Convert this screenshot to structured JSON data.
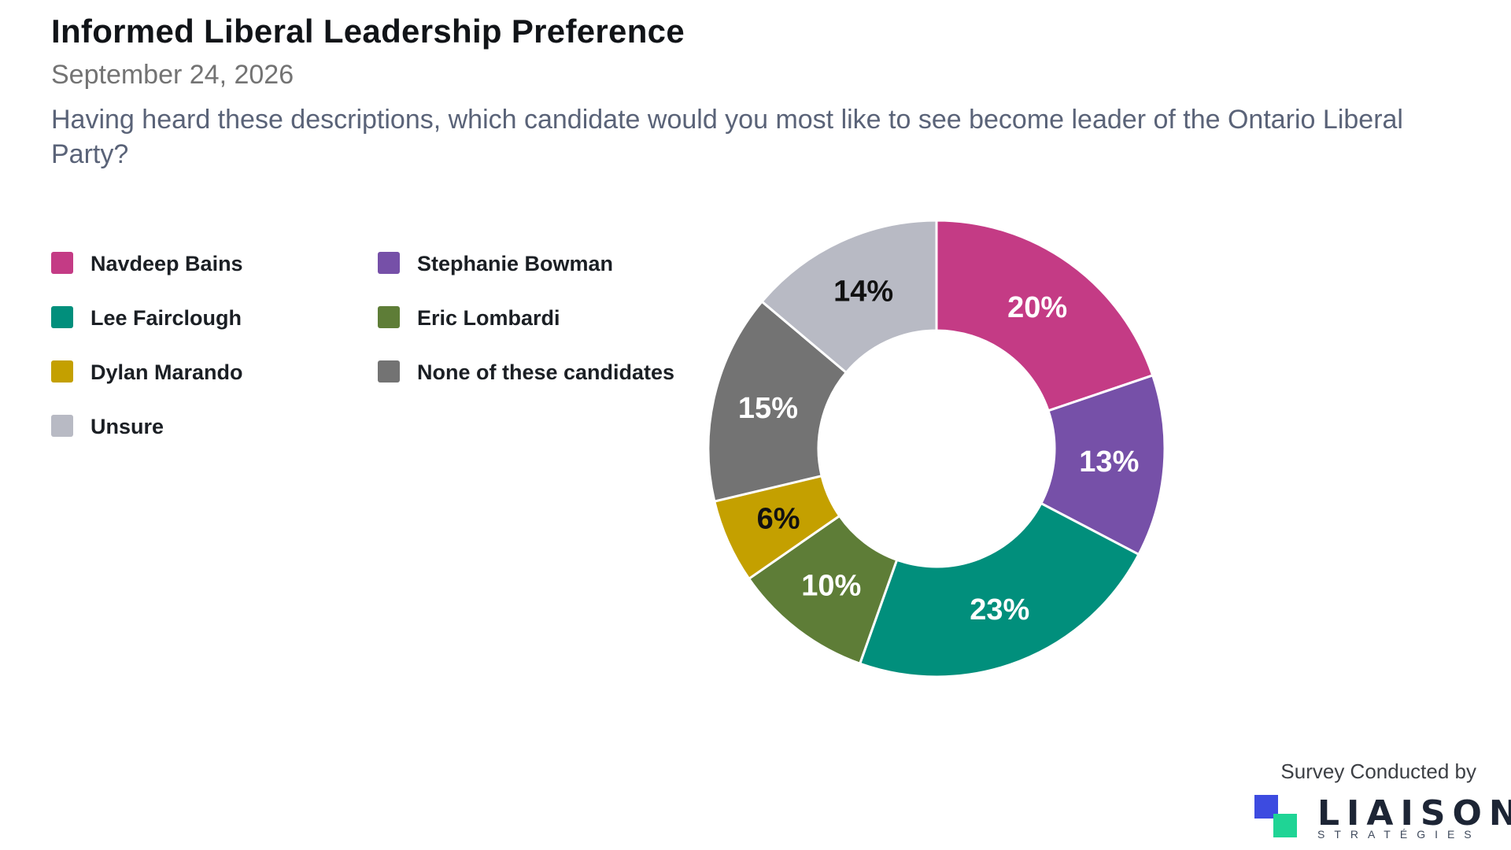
{
  "header": {
    "title": "Informed Liberal Leadership Preference",
    "date": "September 24, 2026",
    "question": "Having heard these descriptions, which candidate would you most like to see become leader of the Ontario Liberal Party?"
  },
  "footer": {
    "survey_text": "Survey Conducted by",
    "brand_name": "LIAISON",
    "brand_sub": "STRATÉGIES",
    "brand_colors": [
      "#3D4BE0",
      "#1FD495"
    ]
  },
  "chart_data": {
    "type": "pie",
    "donut": true,
    "title": "Informed Liberal Leadership Preference",
    "legend_position": "left",
    "slices": [
      {
        "label": "Navdeep Bains",
        "value": 20,
        "display": "20%",
        "color": "#C43B85",
        "label_color": "#ffffff"
      },
      {
        "label": "Stephanie Bowman",
        "value": 13,
        "display": "13%",
        "color": "#7650A8",
        "label_color": "#ffffff"
      },
      {
        "label": "Lee Fairclough",
        "value": 23,
        "display": "23%",
        "color": "#018F7C",
        "label_color": "#ffffff"
      },
      {
        "label": "Eric Lombardi",
        "value": 10,
        "display": "10%",
        "color": "#5E7D37",
        "label_color": "#ffffff"
      },
      {
        "label": "Dylan Marando",
        "value": 6,
        "display": "6%",
        "color": "#C4A000",
        "label_color": "#111111"
      },
      {
        "label": "None of these candidates",
        "value": 15,
        "display": "15%",
        "color": "#737373",
        "label_color": "#ffffff"
      },
      {
        "label": "Unsure",
        "value": 14,
        "display": "14%",
        "color": "#B8BAC4",
        "label_color": "#111111"
      }
    ],
    "legend": [
      "Navdeep Bains",
      "Stephanie Bowman",
      "Lee Fairclough",
      "Eric Lombardi",
      "Dylan Marando",
      "None of these candidates",
      "Unsure"
    ]
  }
}
